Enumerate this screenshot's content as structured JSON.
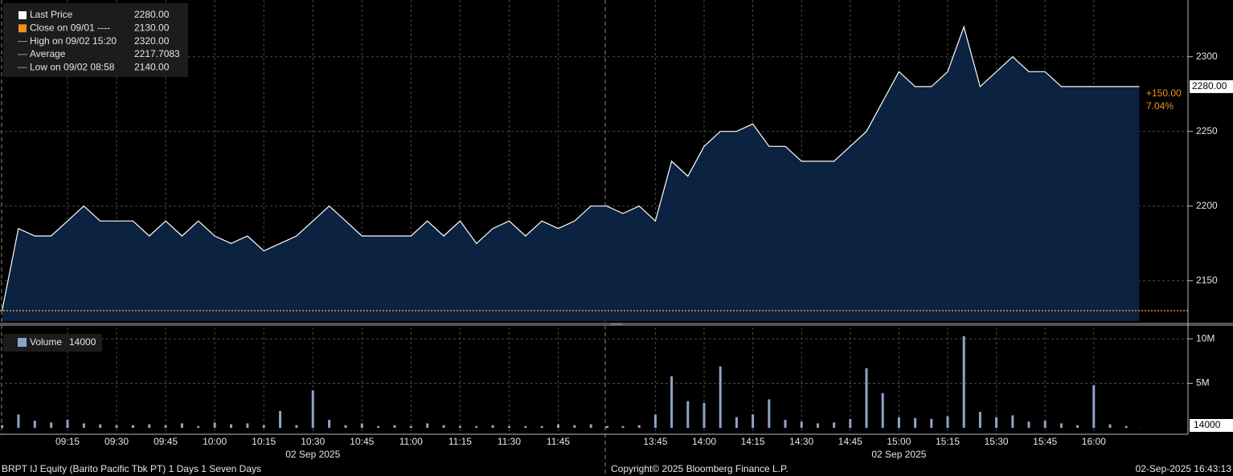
{
  "legend": [
    {
      "text": "Last Price",
      "value": "2280.00"
    },
    {
      "text": "Close on 09/01 ----",
      "value": "2130.00"
    },
    {
      "text": "High on 09/02 15:20",
      "value": "2320.00"
    },
    {
      "text": "Average",
      "value": "2217.7083"
    },
    {
      "text": "Low on 09/02 08:58",
      "value": "2140.00"
    }
  ],
  "chart_data": [
    {
      "type": "area",
      "x": [
        "08:55",
        "09:00",
        "09:05",
        "09:10",
        "09:15",
        "09:20",
        "09:25",
        "09:30",
        "09:35",
        "09:40",
        "09:45",
        "09:50",
        "09:55",
        "10:00",
        "10:05",
        "10:10",
        "10:15",
        "10:20",
        "10:25",
        "10:30",
        "10:35",
        "10:40",
        "10:45",
        "10:50",
        "10:55",
        "11:00",
        "11:05",
        "11:10",
        "11:15",
        "11:20",
        "11:25",
        "11:30",
        "11:35",
        "11:40",
        "11:45",
        "11:50",
        "11:55",
        "12:00",
        "13:30",
        "13:35",
        "13:40",
        "13:45",
        "13:50",
        "13:55",
        "14:00",
        "14:05",
        "14:10",
        "14:15",
        "14:20",
        "14:25",
        "14:30",
        "14:35",
        "14:40",
        "14:45",
        "14:50",
        "14:55",
        "15:00",
        "15:05",
        "15:10",
        "15:15",
        "15:20",
        "15:25",
        "15:30",
        "15:35",
        "15:40",
        "15:45",
        "15:50",
        "15:55",
        "16:00",
        "16:05",
        "16:10",
        "16:14"
      ],
      "series": [
        {
          "name": "Last Price",
          "color": "#ffffff",
          "values": [
            2130,
            2185,
            2180,
            2180,
            2190,
            2200,
            2190,
            2190,
            2190,
            2180,
            2190,
            2180,
            2190,
            2180,
            2175,
            2180,
            2170,
            2175,
            2180,
            2190,
            2200,
            2190,
            2180,
            2180,
            2180,
            2180,
            2190,
            2180,
            2190,
            2175,
            2185,
            2190,
            2180,
            2190,
            2185,
            2190,
            2200,
            2200,
            2200,
            2195,
            2200,
            2190,
            2230,
            2220,
            2240,
            2250,
            2250,
            2255,
            2240,
            2240,
            2230,
            2230,
            2230,
            2240,
            2250,
            2270,
            2290,
            2280,
            2280,
            2290,
            2320,
            2280,
            2290,
            2300,
            2290,
            2290,
            2280,
            2280,
            2280,
            2280,
            2280,
            2280
          ]
        }
      ],
      "area_color": "#0b2240",
      "ylim": [
        2123,
        2338
      ],
      "yticks": [
        2150,
        2200,
        2250,
        2300
      ],
      "reference_line": {
        "value": 2130,
        "color": "#f0901e"
      },
      "last_value": {
        "value": 2280,
        "label": "2280.00"
      },
      "change": {
        "value": 150,
        "label": "+150.00"
      },
      "change_pct": {
        "value": 7.04,
        "label": "7.04%"
      },
      "xticks": [
        "09:15",
        "09:30",
        "09:45",
        "10:00",
        "10:15",
        "10:30",
        "10:45",
        "11:00",
        "11:15",
        "11:30",
        "11:45",
        "13:45",
        "14:00",
        "14:15",
        "14:30",
        "14:45",
        "15:00",
        "15:15",
        "15:30",
        "15:45",
        "16:00"
      ],
      "date_labels": [
        {
          "at": "10:30",
          "label": "02 Sep 2025"
        },
        {
          "at": "15:00",
          "label": "02 Sep 2025"
        }
      ]
    },
    {
      "type": "bar",
      "name": "Volume",
      "color": "#8fa3c8",
      "values": [
        300000,
        1500000,
        800000,
        600000,
        900000,
        500000,
        400000,
        300000,
        300000,
        400000,
        300000,
        500000,
        200000,
        600000,
        400000,
        500000,
        300000,
        1900000,
        300000,
        4200000,
        900000,
        300000,
        500000,
        200000,
        300000,
        200000,
        500000,
        300000,
        200000,
        200000,
        300000,
        200000,
        200000,
        200000,
        400000,
        300000,
        400000,
        200000,
        200000,
        200000,
        300000,
        1500000,
        5800000,
        3000000,
        2800000,
        6900000,
        1200000,
        1500000,
        3200000,
        900000,
        700000,
        500000,
        600000,
        1000000,
        6700000,
        3900000,
        1200000,
        1100000,
        1000000,
        1300000,
        10300000,
        1800000,
        1200000,
        1400000,
        700000,
        800000,
        500000,
        300000,
        4800000,
        400000,
        200000,
        14000
      ],
      "last_value": 14000,
      "ylim": [
        0,
        11000000
      ],
      "yticks": [
        {
          "value": 5000000,
          "label": "5M"
        },
        {
          "value": 10000000,
          "label": "10M"
        }
      ]
    }
  ],
  "footer": {
    "left": "BRPT IJ Equity (Barito Pacific Tbk PT) 1 Days 1 Seven Days",
    "center": "Copyright© 2025 Bloomberg Finance L.P.",
    "right": "02-Sep-2025 16:43:13"
  }
}
